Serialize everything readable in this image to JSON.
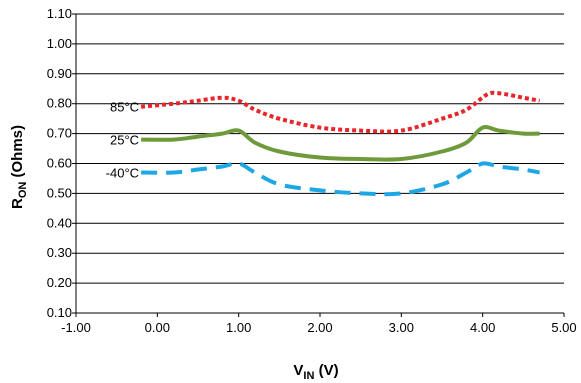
{
  "chart_data": {
    "type": "line",
    "title": "",
    "xlabel": {
      "main": "V",
      "sub": "IN",
      "unit": " (V)"
    },
    "ylabel": {
      "main": "R",
      "sub": "ON",
      "unit": " (Ohms)"
    },
    "xlim": [
      -1.0,
      5.0
    ],
    "ylim": [
      0.1,
      1.1
    ],
    "x_ticks": [
      "-1.00",
      "0.00",
      "1.00",
      "2.00",
      "3.00",
      "4.00",
      "5.00"
    ],
    "y_ticks": [
      "0.10",
      "0.20",
      "0.30",
      "0.40",
      "0.50",
      "0.60",
      "0.70",
      "0.80",
      "0.90",
      "1.00",
      "1.10"
    ],
    "grid": "horizontal",
    "legend": "none",
    "series": [
      {
        "name": "85°C",
        "color": "#e8262a",
        "style": "dotted",
        "points": [
          [
            -0.2,
            0.79
          ],
          [
            0.2,
            0.8
          ],
          [
            0.5,
            0.81
          ],
          [
            0.8,
            0.82
          ],
          [
            1.0,
            0.81
          ],
          [
            1.2,
            0.78
          ],
          [
            1.5,
            0.75
          ],
          [
            2.0,
            0.72
          ],
          [
            2.5,
            0.71
          ],
          [
            3.0,
            0.71
          ],
          [
            3.5,
            0.75
          ],
          [
            3.8,
            0.78
          ],
          [
            4.05,
            0.83
          ],
          [
            4.2,
            0.835
          ],
          [
            4.5,
            0.82
          ],
          [
            4.7,
            0.81
          ]
        ]
      },
      {
        "name": "25°C",
        "color": "#6e9a3b",
        "style": "solid",
        "points": [
          [
            -0.2,
            0.68
          ],
          [
            0.2,
            0.68
          ],
          [
            0.5,
            0.69
          ],
          [
            0.8,
            0.7
          ],
          [
            1.0,
            0.71
          ],
          [
            1.2,
            0.67
          ],
          [
            1.5,
            0.64
          ],
          [
            2.0,
            0.62
          ],
          [
            2.5,
            0.615
          ],
          [
            3.0,
            0.615
          ],
          [
            3.5,
            0.64
          ],
          [
            3.8,
            0.67
          ],
          [
            4.0,
            0.72
          ],
          [
            4.2,
            0.71
          ],
          [
            4.5,
            0.7
          ],
          [
            4.7,
            0.7
          ]
        ]
      },
      {
        "name": "-40°C",
        "color": "#1ea7e4",
        "style": "dashed",
        "points": [
          [
            -0.2,
            0.57
          ],
          [
            0.2,
            0.57
          ],
          [
            0.5,
            0.58
          ],
          [
            0.8,
            0.59
          ],
          [
            1.0,
            0.6
          ],
          [
            1.2,
            0.57
          ],
          [
            1.5,
            0.53
          ],
          [
            2.0,
            0.51
          ],
          [
            2.5,
            0.5
          ],
          [
            3.0,
            0.5
          ],
          [
            3.5,
            0.53
          ],
          [
            3.8,
            0.57
          ],
          [
            4.0,
            0.6
          ],
          [
            4.2,
            0.59
          ],
          [
            4.5,
            0.58
          ],
          [
            4.7,
            0.57
          ]
        ]
      }
    ]
  }
}
